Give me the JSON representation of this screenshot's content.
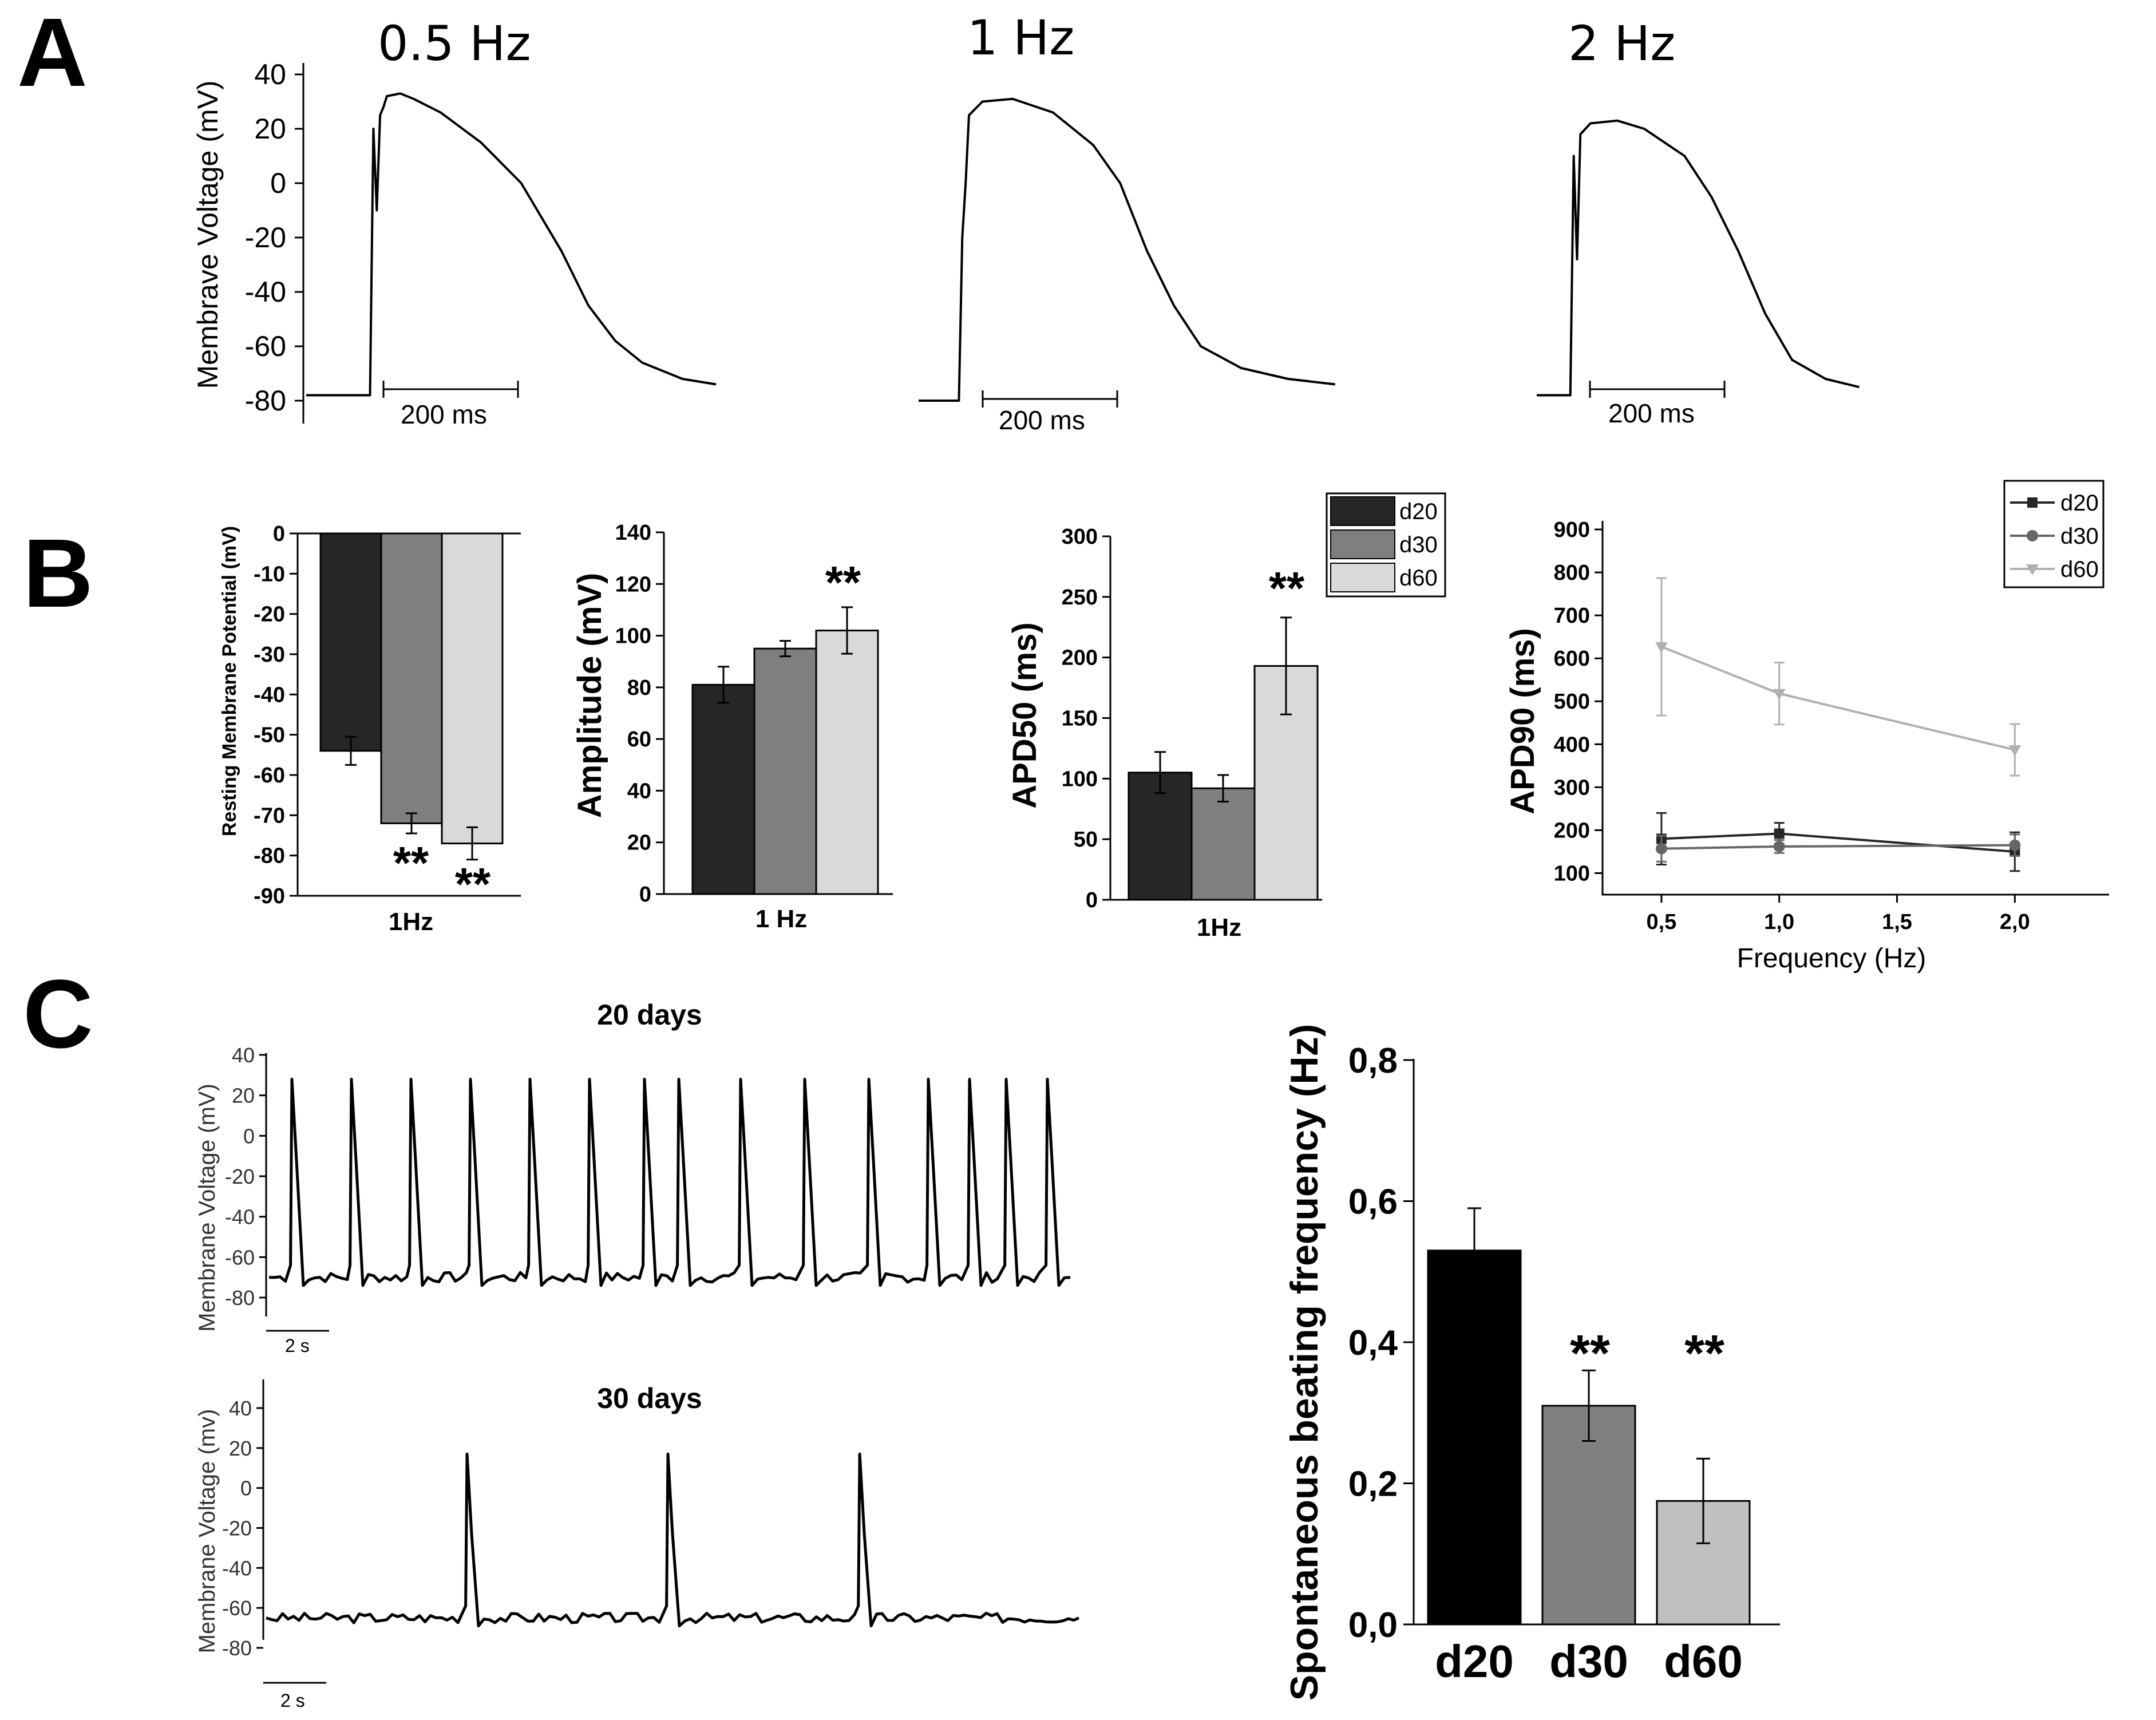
{
  "panel_labels": {
    "a": "A",
    "b": "B",
    "c": "C"
  },
  "panel_a": {
    "ylabel": "Membrave Voltage (mV)",
    "yticks": [
      "40",
      "20",
      "0",
      "-20",
      "-40",
      "-60",
      "-80"
    ],
    "titles": [
      "0.5 Hz",
      "1 Hz",
      "2 Hz"
    ],
    "scalebar_label": "200 ms"
  },
  "panel_b": {
    "colors": {
      "d20": "#262626",
      "d30": "#7f7f7f",
      "d60": "#d9d9d9"
    },
    "legend": [
      "d20",
      "d30",
      "d60"
    ],
    "rmp": {
      "ylabel": "Resting Membrane Potential (mV)",
      "xlabel": "1Hz",
      "yticks": [
        "0",
        "-10",
        "-20",
        "-30",
        "-40",
        "-50",
        "-60",
        "-70",
        "-80",
        "-90"
      ],
      "stars": [
        "**",
        "**"
      ]
    },
    "amp": {
      "ylabel": "Amplitude (mV)",
      "xlabel": "1 Hz",
      "yticks": [
        "0",
        "20",
        "40",
        "60",
        "80",
        "100",
        "120",
        "140"
      ],
      "star": "**"
    },
    "apd50": {
      "ylabel": "APD50 (ms)",
      "xlabel": "1Hz",
      "yticks": [
        "0",
        "50",
        "100",
        "150",
        "200",
        "250",
        "300"
      ],
      "star": "**"
    },
    "apd90": {
      "ylabel": "APD90 (ms)",
      "xlabel": "Frequency (Hz)",
      "yticks": [
        "100",
        "200",
        "300",
        "400",
        "500",
        "600",
        "700",
        "800",
        "900"
      ],
      "xticks": [
        "0,5",
        "1,0",
        "1,5",
        "2,0"
      ]
    }
  },
  "panel_c": {
    "trace_top_title": "20 days",
    "trace_bottom_title": "30 days",
    "ylabel_top": "Membrane Voltage (mV)",
    "ylabel_bottom": "Membrane Voltage (mv)",
    "yticks": [
      "40",
      "20",
      "0",
      "-20",
      "-40",
      "-60",
      "-80"
    ],
    "scalebar_label": "2 s",
    "bar": {
      "ylabel": "Spontaneous beating frequency (Hz)",
      "yticks": [
        "0,0",
        "0,2",
        "0,4",
        "0,6",
        "0,8"
      ],
      "xticks": [
        "d20",
        "d30",
        "d60"
      ],
      "stars": [
        "**",
        "**"
      ],
      "colors": [
        "#000000",
        "#808080",
        "#c0c0c0"
      ]
    }
  },
  "chart_data": [
    {
      "type": "line",
      "panel": "A",
      "title": "0.5 Hz",
      "ylabel": "Membrave Voltage (mV)",
      "ylim": [
        -90,
        45
      ],
      "scalebar": "200 ms",
      "series": [
        {
          "x_ms": [
            0,
            95,
            100,
            105,
            110,
            115,
            120,
            140,
            160,
            200,
            260,
            320,
            380,
            420,
            460,
            500,
            560,
            610
          ],
          "y_mV": [
            -78,
            -78,
            20,
            -10,
            25,
            28,
            32,
            33,
            31,
            26,
            15,
            0,
            -25,
            -45,
            -58,
            -66,
            -72,
            -74
          ]
        }
      ]
    },
    {
      "type": "line",
      "panel": "A",
      "title": "1 Hz",
      "ylabel": "Membrave Voltage (mV)",
      "ylim": [
        -90,
        45
      ],
      "scalebar": "200 ms",
      "series": [
        {
          "x_ms": [
            0,
            60,
            65,
            70,
            75,
            95,
            140,
            200,
            260,
            300,
            340,
            380,
            420,
            480,
            550,
            620
          ],
          "y_mV": [
            -80,
            -80,
            -20,
            0,
            25,
            30,
            31,
            26,
            14,
            0,
            -25,
            -45,
            -60,
            -68,
            -72,
            -74
          ]
        }
      ]
    },
    {
      "type": "line",
      "panel": "A",
      "title": "2 Hz",
      "ylabel": "Membrave Voltage (mV)",
      "ylim": [
        -90,
        45
      ],
      "scalebar": "200 ms",
      "series": [
        {
          "x_ms": [
            0,
            50,
            55,
            60,
            65,
            80,
            120,
            160,
            220,
            260,
            300,
            340,
            380,
            430,
            480
          ],
          "y_mV": [
            -78,
            -78,
            10,
            -28,
            18,
            22,
            23,
            20,
            10,
            -5,
            -25,
            -48,
            -65,
            -72,
            -75
          ]
        }
      ]
    },
    {
      "type": "bar",
      "panel": "B",
      "ylabel": "Resting Membrane Potential (mV)",
      "xlabel": "1Hz",
      "ylim": [
        -90,
        0
      ],
      "categories": [
        "d20",
        "d30",
        "d60"
      ],
      "values": [
        -54,
        -72,
        -77
      ],
      "errors": [
        3.5,
        2.5,
        4
      ],
      "significance": [
        "",
        "**",
        "**"
      ]
    },
    {
      "type": "bar",
      "panel": "B",
      "ylabel": "Amplitude (mV)",
      "xlabel": "1 Hz",
      "ylim": [
        0,
        140
      ],
      "categories": [
        "d20",
        "d30",
        "d60"
      ],
      "values": [
        81,
        95,
        102
      ],
      "errors": [
        7,
        3,
        9
      ],
      "significance": [
        "",
        "",
        "**"
      ]
    },
    {
      "type": "bar",
      "panel": "B",
      "ylabel": "APD50 (ms)",
      "xlabel": "1Hz",
      "ylim": [
        0,
        300
      ],
      "categories": [
        "d20",
        "d30",
        "d60"
      ],
      "values": [
        105,
        92,
        193
      ],
      "errors": [
        17,
        11,
        40
      ],
      "significance": [
        "",
        "",
        "**"
      ]
    },
    {
      "type": "line",
      "panel": "B",
      "ylabel": "APD90 (ms)",
      "xlabel": "Frequency (Hz)",
      "ylim": [
        50,
        900
      ],
      "xlim": [
        0.25,
        2.4
      ],
      "x": [
        0.5,
        1.0,
        2.0
      ],
      "series": [
        {
          "name": "d20",
          "values": [
            180,
            192,
            150
          ],
          "errors": [
            60,
            25,
            45
          ]
        },
        {
          "name": "d30",
          "values": [
            157,
            162,
            165
          ],
          "errors": [
            30,
            15,
            25
          ]
        },
        {
          "name": "d60",
          "values": [
            627,
            518,
            387
          ],
          "errors": [
            160,
            72,
            60
          ]
        }
      ]
    },
    {
      "type": "line",
      "panel": "C",
      "title": "20 days",
      "ylabel": "Membrane Voltage (mV)",
      "ylim": [
        -90,
        45
      ],
      "scalebar": "2 s",
      "baseline_mV": -70,
      "spike_peak_mV": 28,
      "spike_times_s": [
        0.5,
        1.8,
        3.1,
        4.4,
        5.7,
        7.0,
        8.2,
        8.95,
        10.3,
        11.7,
        13.1,
        14.4,
        15.3,
        16.1,
        17.0
      ]
    },
    {
      "type": "line",
      "panel": "C",
      "title": "30 days",
      "ylabel": "Membrane Voltage (mv)",
      "ylim": [
        -90,
        45
      ],
      "scalebar": "2 s",
      "baseline_mV": -65,
      "spike_peak_mV": 17,
      "spike_times_s": [
        4.4,
        8.8,
        13.0
      ]
    },
    {
      "type": "bar",
      "panel": "C",
      "ylabel": "Spontaneous beating frequency (Hz)",
      "ylim": [
        0,
        0.8
      ],
      "categories": [
        "d20",
        "d30",
        "d60"
      ],
      "values": [
        0.53,
        0.31,
        0.175
      ],
      "errors": [
        0.06,
        0.05,
        0.06
      ],
      "significance": [
        "",
        "**",
        "**"
      ]
    }
  ]
}
